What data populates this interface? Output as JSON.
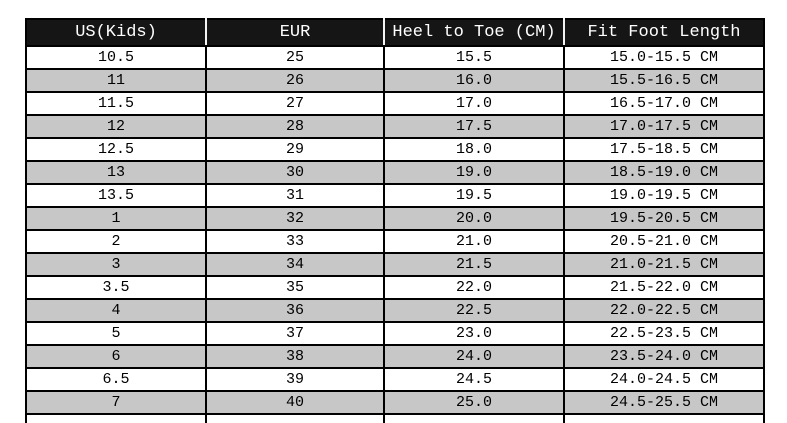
{
  "chart_data": {
    "type": "table",
    "columns": [
      "US(Kids)",
      "EUR",
      "Heel to Toe (CM)",
      "Fit Foot Length"
    ],
    "rows": [
      [
        "10.5",
        "25",
        "15.5",
        "15.0-15.5 CM"
      ],
      [
        "11",
        "26",
        "16.0",
        "15.5-16.5 CM"
      ],
      [
        "11.5",
        "27",
        "17.0",
        "16.5-17.0 CM"
      ],
      [
        "12",
        "28",
        "17.5",
        "17.0-17.5 CM"
      ],
      [
        "12.5",
        "29",
        "18.0",
        "17.5-18.5 CM"
      ],
      [
        "13",
        "30",
        "19.0",
        "18.5-19.0 CM"
      ],
      [
        "13.5",
        "31",
        "19.5",
        "19.0-19.5 CM"
      ],
      [
        "1",
        "32",
        "20.0",
        "19.5-20.5 CM"
      ],
      [
        "2",
        "33",
        "21.0",
        "20.5-21.0 CM"
      ],
      [
        "3",
        "34",
        "21.5",
        "21.0-21.5 CM"
      ],
      [
        "3.5",
        "35",
        "22.0",
        "21.5-22.0 CM"
      ],
      [
        "4",
        "36",
        "22.5",
        "22.0-22.5 CM"
      ],
      [
        "5",
        "37",
        "23.0",
        "22.5-23.5 CM"
      ],
      [
        "6",
        "38",
        "24.0",
        "23.5-24.0 CM"
      ],
      [
        "6.5",
        "39",
        "24.5",
        "24.0-24.5 CM"
      ],
      [
        "7",
        "40",
        "25.0",
        "24.5-25.5 CM"
      ]
    ]
  },
  "colors": {
    "header_bg": "#151515",
    "header_text": "#ffffff",
    "row_bg": "#ffffff",
    "row_alt_bg": "#c7c7c7",
    "border": "#000000",
    "page_bg": "#ffffff",
    "cell_text": "#000000"
  }
}
